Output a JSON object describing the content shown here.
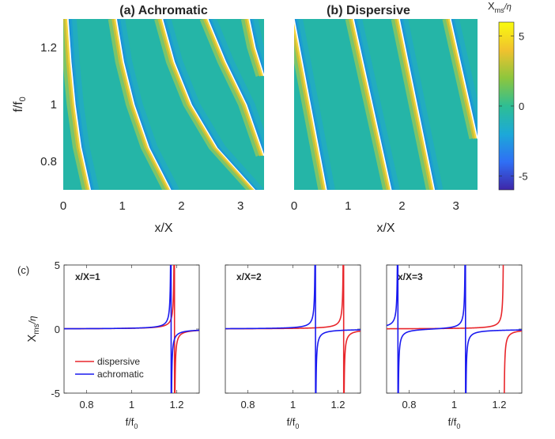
{
  "chart_data": [
    {
      "type": "heatmap",
      "panel": "a",
      "title": "(a) Achromatic",
      "xlabel": "x/X",
      "ylabel": "f/f",
      "ylabel_sub": "0",
      "xlim": [
        0,
        3.4
      ],
      "ylim": [
        0.7,
        1.3
      ],
      "xticks": [
        "0",
        "1",
        "2",
        "3"
      ],
      "yticks": [
        "0.8",
        "1",
        "1.2"
      ],
      "resonance_curves": [
        {
          "f": [
            0.7,
            0.85,
            1.0,
            1.15,
            1.3
          ],
          "x": [
            0.46,
            0.3,
            0.2,
            0.13,
            0.08
          ]
        },
        {
          "f": [
            0.7,
            0.85,
            1.0,
            1.15,
            1.3
          ],
          "x": [
            1.82,
            1.45,
            1.2,
            1.02,
            0.9
          ]
        },
        {
          "f": [
            0.7,
            0.85,
            1.0,
            1.15,
            1.3
          ],
          "x": [
            3.25,
            2.6,
            2.17,
            1.88,
            1.68
          ]
        },
        {
          "f": [
            0.82,
            1.0,
            1.15,
            1.3
          ],
          "x": [
            3.4,
            3.1,
            2.75,
            2.45
          ]
        },
        {
          "f": [
            1.1,
            1.2,
            1.3
          ],
          "x": [
            3.4,
            3.25,
            3.15
          ]
        }
      ]
    },
    {
      "type": "heatmap",
      "panel": "b",
      "title": "(b) Dispersive",
      "xlabel": "x/X",
      "xlim": [
        0,
        3.4
      ],
      "ylim": [
        0.7,
        1.3
      ],
      "xticks": [
        "0",
        "1",
        "2",
        "3"
      ],
      "resonance_curves": [
        {
          "f": [
            0.7,
            1.3
          ],
          "x": [
            0.6,
            0.0
          ]
        },
        {
          "f": [
            0.7,
            1.3
          ],
          "x": [
            1.8,
            1.1
          ]
        },
        {
          "f": [
            0.7,
            1.3
          ],
          "x": [
            2.6,
            1.95
          ]
        },
        {
          "f": [
            0.88,
            1.3
          ],
          "x": [
            3.4,
            2.9
          ]
        }
      ]
    },
    {
      "type": "colorbar",
      "title": "X",
      "title_sub": "ms",
      "title_suffix": "/η",
      "range": [
        -6,
        6
      ],
      "ticks": [
        "5",
        "0",
        "-5"
      ],
      "colormap": [
        "#3e26a8",
        "#2f6ff5",
        "#1ca9d8",
        "#2ebe94",
        "#8dc63d",
        "#f1c22e",
        "#f9fb0e"
      ]
    },
    {
      "type": "line",
      "panel_label": "(c)",
      "annotation": "x/X=1",
      "xlabel": "f/f",
      "xlabel_sub": "0",
      "ylabel": "X",
      "ylabel_sub": "ms",
      "ylabel_suffix": "/η",
      "xlim": [
        0.7,
        1.3
      ],
      "ylim": [
        -5,
        5
      ],
      "xticks": [
        "0.8",
        "1",
        "1.2"
      ],
      "yticks": [
        "5",
        "0",
        "-5"
      ],
      "legend": [
        "dispersive",
        "achromatic"
      ],
      "legend_loc": "lower-left",
      "series": [
        {
          "name": "dispersive",
          "color": "#e8262b",
          "poles": [
            1.19
          ]
        },
        {
          "name": "achromatic",
          "color": "#1a1aef",
          "poles": [
            1.175
          ]
        }
      ]
    },
    {
      "type": "line",
      "annotation": "x/X=2",
      "xlabel": "f/f",
      "xlabel_sub": "0",
      "xlim": [
        0.7,
        1.3
      ],
      "ylim": [
        -5,
        5
      ],
      "xticks": [
        "0.8",
        "1",
        "1.2"
      ],
      "series": [
        {
          "name": "dispersive",
          "color": "#e8262b",
          "poles": [
            1.225
          ]
        },
        {
          "name": "achromatic",
          "color": "#1a1aef",
          "poles": [
            1.1
          ]
        }
      ]
    },
    {
      "type": "line",
      "annotation": "x/X=3",
      "xlabel": "f/f",
      "xlabel_sub": "0",
      "xlim": [
        0.7,
        1.3
      ],
      "ylim": [
        -5,
        5
      ],
      "xticks": [
        "0.8",
        "1",
        "1.2"
      ],
      "series": [
        {
          "name": "dispersive",
          "color": "#e8262b",
          "poles": [
            1.22
          ]
        },
        {
          "name": "achromatic",
          "color": "#1a1aef",
          "poles": [
            0.75,
            1.05
          ]
        }
      ]
    }
  ]
}
